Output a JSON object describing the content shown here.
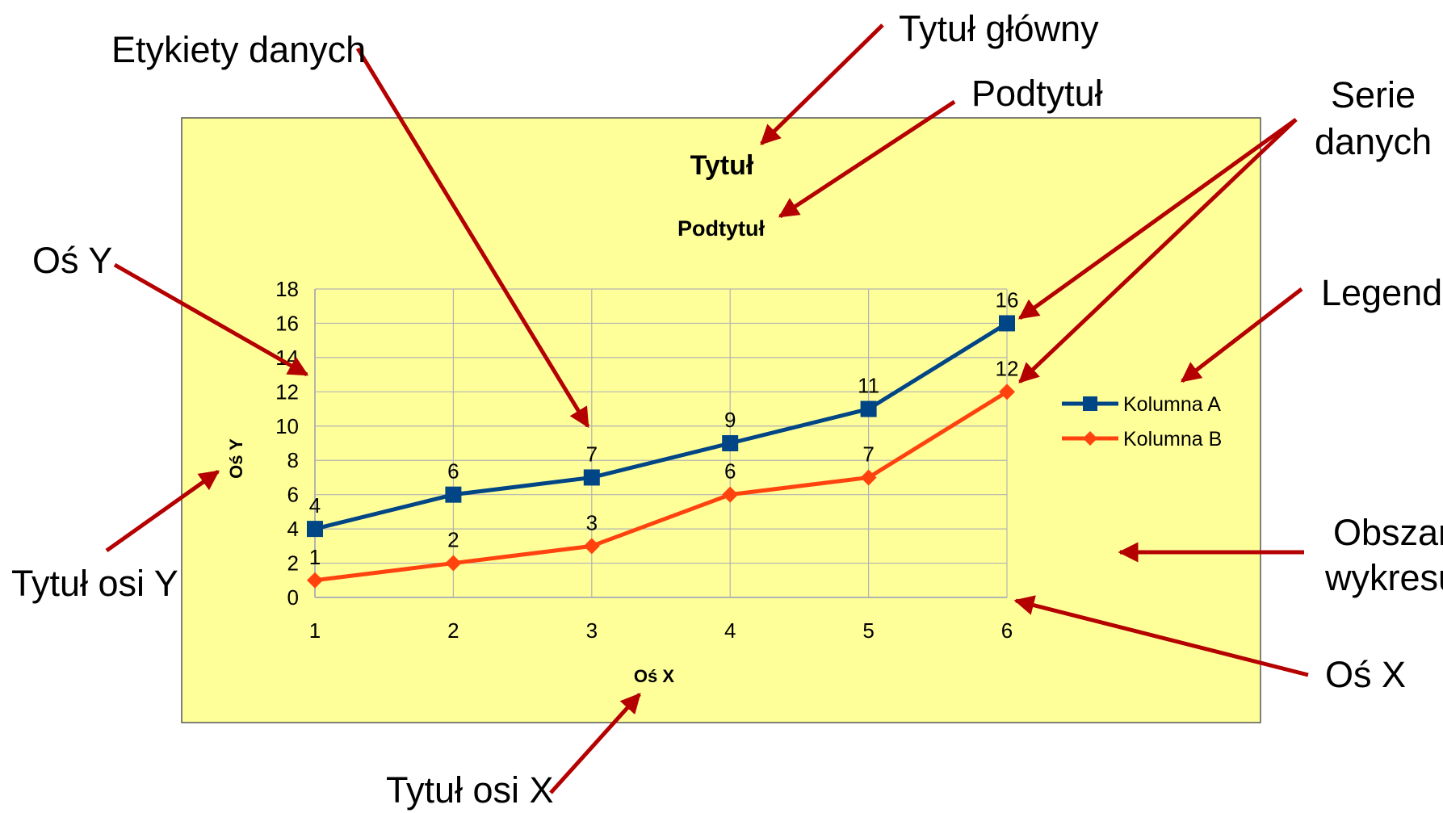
{
  "annotations": {
    "main_title": "Tytuł główny",
    "subtitle": "Podtytuł",
    "data_labels": "Etykiety danych",
    "data_series_line1": "Serie",
    "data_series_line2": "danych",
    "axis_y": "Oś Y",
    "legend": "Legenda",
    "axis_y_title": "Tytuł osi Y",
    "plot_area_line1": "Obszar",
    "plot_area_line2": "wykresu",
    "axis_x": "Oś X",
    "axis_x_title": "Tytuł osi X"
  },
  "colors": {
    "arrow": "#b40000",
    "chart_background": "#ffff99",
    "series_a": "#004586",
    "series_b": "#ff420e",
    "grid": "#b3b3b3"
  },
  "chart_data": {
    "type": "line",
    "title": "Tytuł",
    "subtitle": "Podtytuł",
    "xlabel": "Oś X",
    "ylabel": "Oś Y",
    "x": [
      1,
      2,
      3,
      4,
      5,
      6
    ],
    "ylim": [
      0,
      18
    ],
    "yticks": [
      0,
      2,
      4,
      6,
      8,
      10,
      12,
      14,
      16,
      18
    ],
    "grid": true,
    "legend_position": "right",
    "series": [
      {
        "name": "Kolumna A",
        "values": [
          4,
          6,
          7,
          9,
          11,
          16
        ],
        "marker": "square"
      },
      {
        "name": "Kolumna B",
        "values": [
          1,
          2,
          3,
          6,
          7,
          12
        ],
        "marker": "diamond"
      }
    ]
  }
}
